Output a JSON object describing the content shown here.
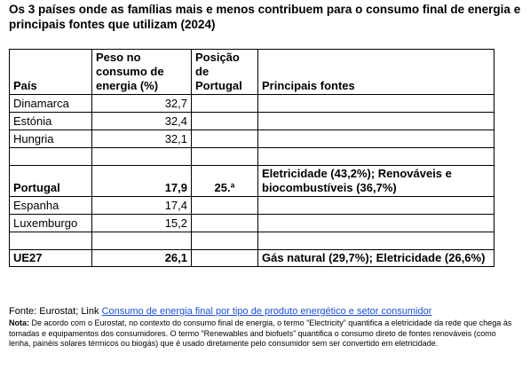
{
  "header": {
    "title": "Os 3 países onde as famílias mais e menos contribuem para o consumo final de energia e principais fontes que utilizam (2024)"
  },
  "table": {
    "columns": [
      "País",
      "Peso no consumo de energia (%)",
      "Posição de Portugal",
      "Principais fontes"
    ],
    "rows": [
      {
        "country": "Dinamarca",
        "weight": "32,7"
      },
      {
        "country": "Estónia",
        "weight": "32,4"
      },
      {
        "country": "Hungria",
        "weight": "32,1"
      },
      {
        "country": "Portugal",
        "weight": "17,9",
        "rank": "25.ª",
        "sources": "Eletricidade (43,2%); Renováveis e biocombustíveis (36,7%)"
      },
      {
        "country": "Espanha",
        "weight": "17,4"
      },
      {
        "country": "Luxemburgo",
        "weight": "15,2"
      },
      {
        "country": "UE27",
        "weight": "26,1",
        "sources": "Gás natural (29,7%); Eletricidade (26,6%)"
      }
    ]
  },
  "footer": {
    "source": "Fonte: Eurostat; Link",
    "link": "Consumo de energia final por tipo de produto energético e setor consumidor",
    "note_label": "Nota:",
    "note": "De acordo com o Eurostat, no contexto do consumo final de energia, o termo “Electricity” quantifica a eletricidade da rede que chega às tomadas e equipamentos dos consumidores. O termo “Renewables and biofuels” quantifica o consumo direto de fontes renováveis (como lenha, painéis solares térmicos ou biogás) que é usado diretamente pelo consumidor sem ser convertido em eletricidade."
  }
}
